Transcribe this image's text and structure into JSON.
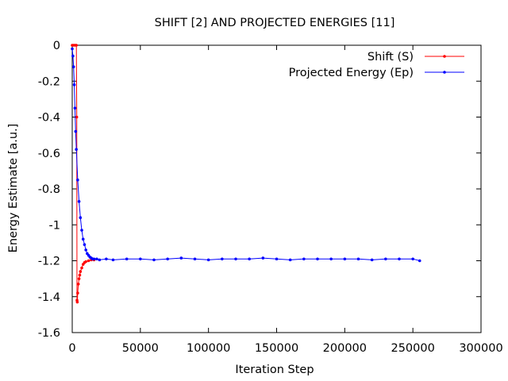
{
  "chart_data": {
    "type": "line",
    "title": "SHIFT [2] AND PROJECTED ENERGIES [11]",
    "xlabel": "Iteration Step",
    "ylabel": "Energy Estimate [a.u.]",
    "xlim": [
      0,
      300000
    ],
    "ylim": [
      -1.6,
      0
    ],
    "x_ticks": [
      0,
      50000,
      100000,
      150000,
      200000,
      250000,
      300000
    ],
    "y_ticks": [
      0,
      -0.2,
      -0.4,
      -0.6,
      -0.8,
      -1,
      -1.2,
      -1.4,
      -1.6
    ],
    "legend_position": "top-right",
    "grid": false,
    "series": [
      {
        "name": "Shift (S)",
        "color": "#ff0000",
        "x": [
          0,
          1000,
          2000,
          3000,
          3300,
          3500,
          3700,
          4000,
          4500,
          5000,
          5500,
          6000,
          7000,
          8000,
          9000,
          10000,
          12000,
          14000,
          16000
        ],
        "y": [
          0,
          0,
          0,
          0,
          -0.4,
          -1.42,
          -1.43,
          -1.38,
          -1.33,
          -1.3,
          -1.28,
          -1.26,
          -1.24,
          -1.22,
          -1.21,
          -1.205,
          -1.2,
          -1.195,
          -1.195
        ]
      },
      {
        "name": "Projected Energy (Ep)",
        "color": "#0000ff",
        "x": [
          0,
          500,
          1000,
          1500,
          2000,
          2500,
          3000,
          4000,
          5000,
          6000,
          7000,
          8000,
          9000,
          10000,
          11000,
          12000,
          13000,
          14000,
          15000,
          16000,
          18000,
          20000,
          25000,
          30000,
          40000,
          50000,
          60000,
          70000,
          80000,
          90000,
          100000,
          110000,
          120000,
          130000,
          140000,
          150000,
          160000,
          170000,
          180000,
          190000,
          200000,
          210000,
          220000,
          230000,
          240000,
          250000,
          255000
        ],
        "y": [
          -0.02,
          -0.06,
          -0.12,
          -0.22,
          -0.35,
          -0.48,
          -0.58,
          -0.75,
          -0.87,
          -0.96,
          -1.03,
          -1.08,
          -1.11,
          -1.14,
          -1.16,
          -1.17,
          -1.18,
          -1.185,
          -1.19,
          -1.19,
          -1.19,
          -1.195,
          -1.19,
          -1.195,
          -1.19,
          -1.19,
          -1.195,
          -1.19,
          -1.185,
          -1.19,
          -1.195,
          -1.19,
          -1.19,
          -1.19,
          -1.185,
          -1.19,
          -1.195,
          -1.19,
          -1.19,
          -1.19,
          -1.19,
          -1.19,
          -1.195,
          -1.19,
          -1.19,
          -1.19,
          -1.2
        ]
      }
    ]
  }
}
